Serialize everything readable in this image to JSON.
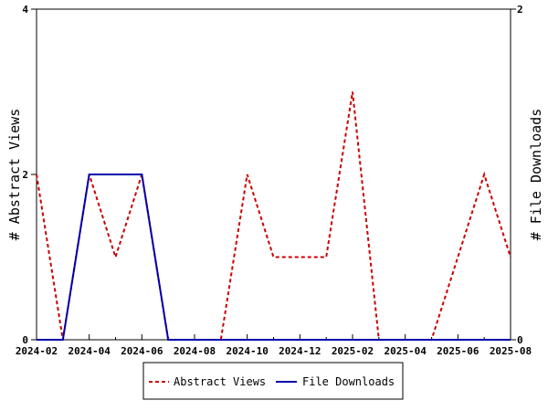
{
  "chart_data": {
    "type": "line",
    "x": [
      "2024-02",
      "2024-03",
      "2024-04",
      "2024-05",
      "2024-06",
      "2024-07",
      "2024-08",
      "2024-09",
      "2024-10",
      "2024-11",
      "2024-12",
      "2025-01",
      "2025-02",
      "2025-03",
      "2025-04",
      "2025-05",
      "2025-06",
      "2025-07",
      "2025-08"
    ],
    "xticks": [
      "2024-02",
      "2024-04",
      "2024-06",
      "2024-08",
      "2024-10",
      "2024-12",
      "2025-02",
      "2025-04",
      "2025-06",
      "2025-08"
    ],
    "series": [
      {
        "name": "Abstract Views",
        "axis": "left",
        "color": "#cc0000",
        "style": "dashed",
        "values": [
          2,
          0,
          2,
          1,
          2,
          0,
          0,
          0,
          2,
          1,
          1,
          1,
          3,
          0,
          0,
          0,
          1,
          2,
          1
        ]
      },
      {
        "name": "File Downloads",
        "axis": "right",
        "color": "#0000aa",
        "style": "solid",
        "values": [
          0,
          0,
          1,
          1,
          1,
          0,
          0,
          0,
          0,
          0,
          0,
          0,
          0,
          0,
          0,
          0,
          0,
          0,
          0
        ]
      }
    ],
    "ylabel_left": "# Abstract Views",
    "ylabel_right": "# File Downloads",
    "ylim_left": [
      0,
      4
    ],
    "ylim_right": [
      0,
      2
    ],
    "yticks_left": [
      "0",
      "2",
      "4"
    ],
    "yticks_right": [
      "0",
      "2"
    ],
    "grid": false,
    "legend_position": "bottom-center"
  }
}
